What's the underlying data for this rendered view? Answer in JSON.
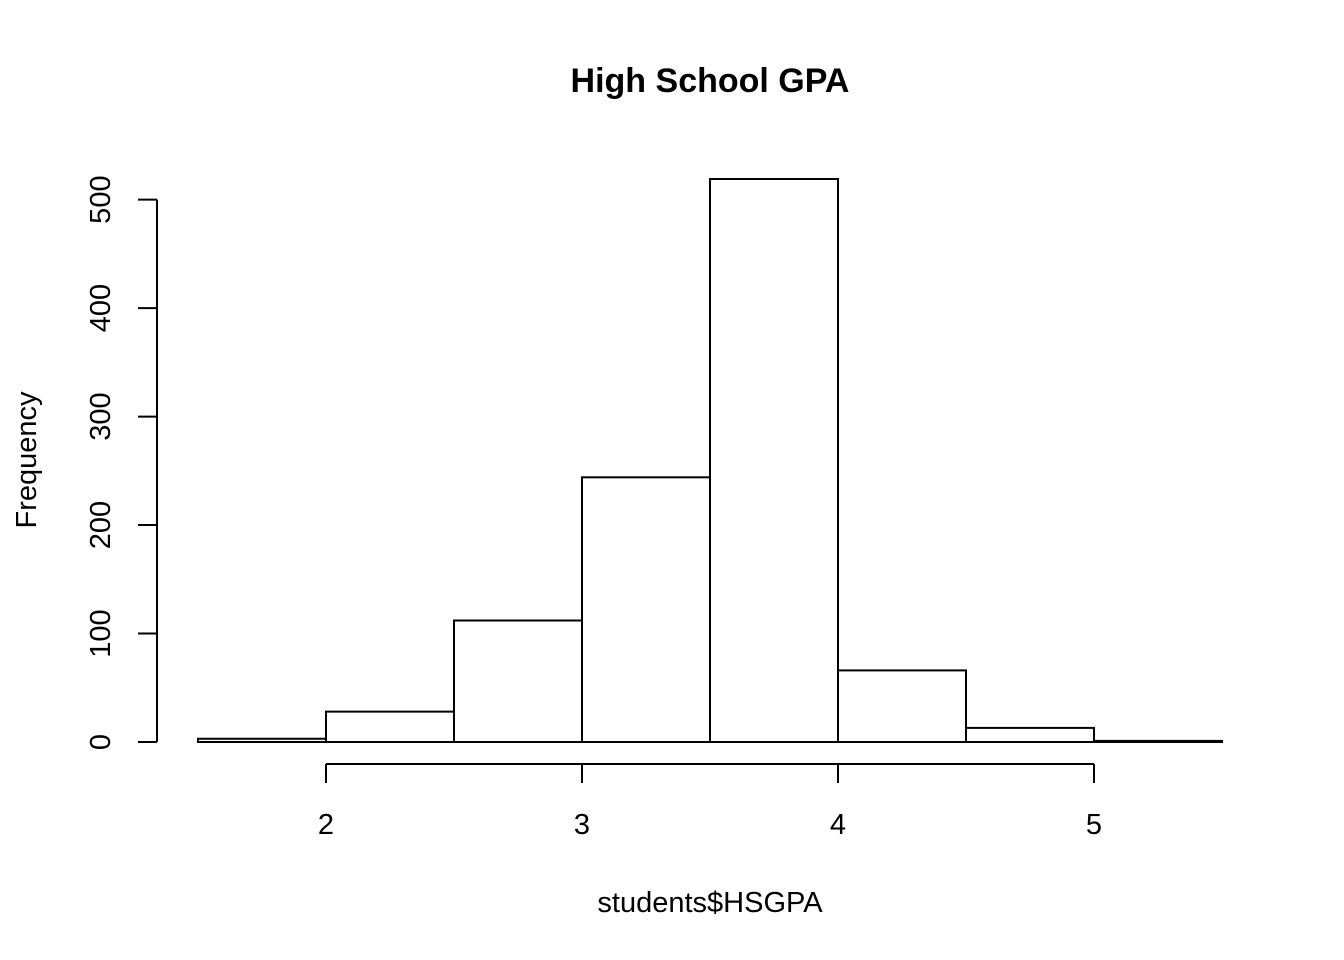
{
  "chart_data": {
    "type": "bar",
    "title": "High School GPA",
    "xlabel": "students$HSGPA",
    "ylabel": "Frequency",
    "bins": [
      {
        "from": 1.5,
        "to": 2.0,
        "value": 3
      },
      {
        "from": 2.0,
        "to": 2.5,
        "value": 28
      },
      {
        "from": 2.5,
        "to": 3.0,
        "value": 112
      },
      {
        "from": 3.0,
        "to": 3.5,
        "value": 244
      },
      {
        "from": 3.5,
        "to": 4.0,
        "value": 519
      },
      {
        "from": 4.0,
        "to": 4.5,
        "value": 66
      },
      {
        "from": 4.5,
        "to": 5.0,
        "value": 13
      },
      {
        "from": 5.0,
        "to": 5.5,
        "value": 1
      }
    ],
    "x_ticks": [
      2,
      3,
      4,
      5
    ],
    "y_ticks": [
      0,
      100,
      200,
      300,
      400,
      500
    ],
    "xlim": [
      1.5,
      5.5
    ],
    "ylim": [
      0,
      519
    ],
    "grid": false,
    "colors": {
      "bar_fill": "#ffffff",
      "bar_stroke": "#000000"
    }
  }
}
